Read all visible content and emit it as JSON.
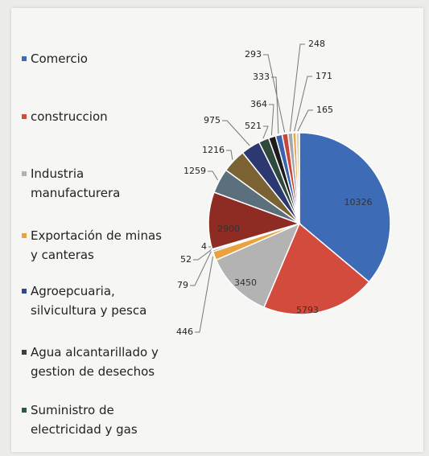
{
  "chart_data": {
    "type": "pie",
    "categories": [
      "Comercio",
      "construccion",
      "Industria manufacturera",
      "Exportación de minas y canteras",
      "Agroepcuaria, silvicultura y pesca",
      "Agua alcantarillado y gestion de desechos",
      "Suministro de electricidad y gas",
      null,
      null,
      null,
      null,
      null,
      null,
      null,
      null,
      null,
      null,
      null
    ],
    "values": [
      10326,
      5793,
      3450,
      446,
      79,
      52,
      4,
      2900,
      1259,
      1216,
      975,
      521,
      364,
      333,
      293,
      248,
      171,
      165
    ],
    "colors": [
      "#3d6bb5",
      "#d24b3c",
      "#b3b3b3",
      "#e9a23f",
      "#2f4a86",
      "#3a3f3a",
      "#2d5a3a",
      "#8e2b23",
      "#5b6f7c",
      "#7b6233",
      "#2c3970",
      "#2f4a3c",
      "#1c1c1c",
      "#3a64b0",
      "#c9473a",
      "#a8a8a8",
      "#e6a54a",
      "#d8d0b8"
    ],
    "legend": "left"
  }
}
